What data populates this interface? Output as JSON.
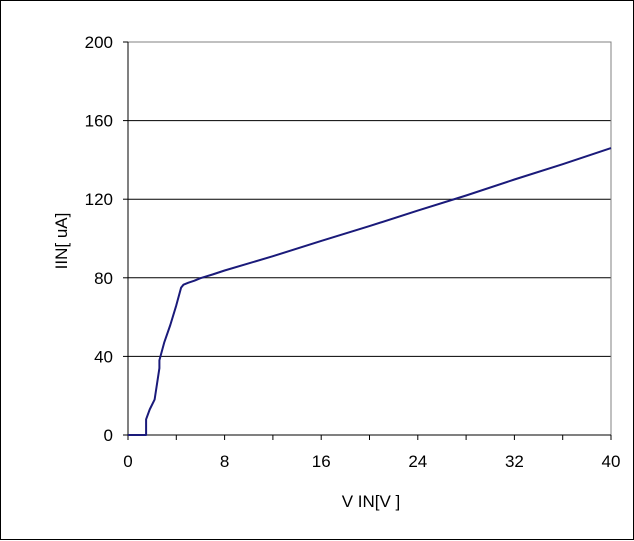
{
  "chart_data": {
    "type": "line",
    "title": "",
    "xlabel": "V IN[V ]",
    "ylabel": "IIN[ uA]",
    "xlim": [
      0,
      40
    ],
    "ylim": [
      0,
      200
    ],
    "xticks": [
      0,
      8,
      16,
      24,
      32,
      40
    ],
    "yticks": [
      0,
      40,
      80,
      120,
      160,
      200
    ],
    "grid": {
      "horizontal": true,
      "vertical": false
    },
    "legend": "none",
    "series": [
      {
        "color": "#1a1a7a",
        "x": [
          0,
          1.5,
          1.5,
          1.8,
          2.2,
          2.6,
          2.6,
          3.0,
          3.5,
          4.0,
          4.4,
          4.6,
          5.0,
          5.5,
          6.0,
          7.0,
          8.0,
          12.0,
          16.0,
          20.0,
          24.0,
          28.0,
          32.0,
          36.0,
          40.0
        ],
        "y": [
          0,
          0,
          8,
          13,
          18,
          34,
          38,
          47,
          56,
          66,
          75,
          76.5,
          77.5,
          78.5,
          79.8,
          81.7,
          83.7,
          91.0,
          98.8,
          106.3,
          114.2,
          121.9,
          130.0,
          137.8,
          146.0
        ]
      }
    ]
  }
}
